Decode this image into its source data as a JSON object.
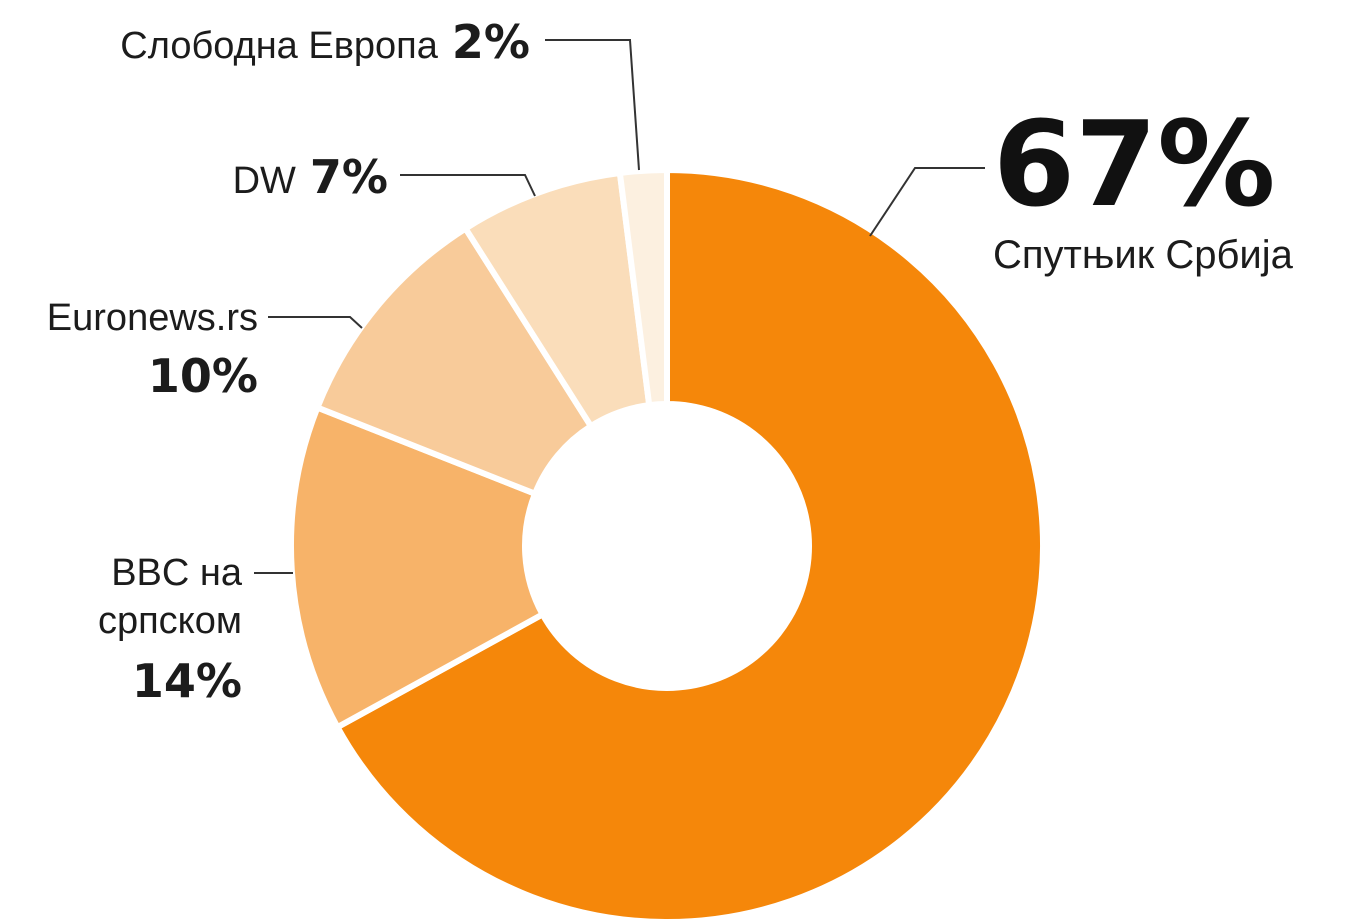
{
  "chart_data": {
    "type": "pie",
    "donut": true,
    "legend": "none",
    "slices": [
      {
        "label": "Спутњик Србија",
        "value": 67,
        "display": "67%",
        "color": "#F5870A"
      },
      {
        "label": "BBC на српском",
        "value": 14,
        "display": "14%",
        "color": "#F7B369"
      },
      {
        "label": "Euronews.rs",
        "value": 10,
        "display": "10%",
        "color": "#F8CB9A"
      },
      {
        "label": "DW",
        "value": 7,
        "display": "7%",
        "color": "#FADDBA"
      },
      {
        "label": "Слободна Европа",
        "value": 2,
        "display": "2%",
        "color": "#FCF0E0"
      }
    ],
    "slice_order": "clockwise from top",
    "slice_separator_color": "#ffffff"
  }
}
